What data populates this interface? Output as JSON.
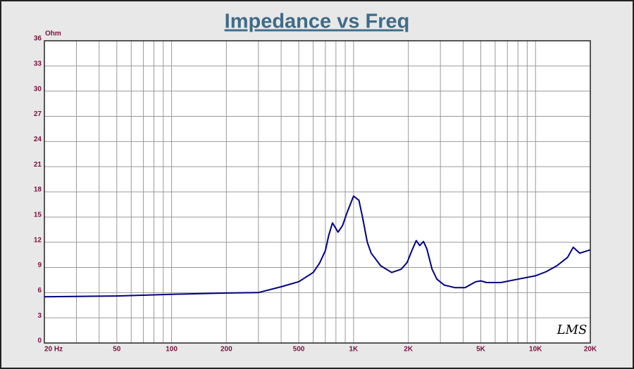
{
  "chart_data": {
    "type": "line",
    "title": "Impedance vs Freq",
    "y_label": "Ohm",
    "annotation": "LMS",
    "log_x": true,
    "grid": true,
    "x": [
      20,
      50,
      100,
      200,
      300,
      400,
      500,
      600,
      650,
      700,
      730,
      766,
      822,
      870,
      920,
      1000,
      1070,
      1120,
      1190,
      1250,
      1410,
      1620,
      1830,
      1970,
      2090,
      2210,
      2310,
      2420,
      2530,
      2700,
      2870,
      3150,
      3600,
      4100,
      4700,
      5000,
      5380,
      6450,
      8000,
      10000,
      11450,
      13100,
      15000,
      16100,
      17500,
      20000
    ],
    "series": [
      {
        "name": "Impedance",
        "color": "#000080",
        "values": [
          5.5,
          5.6,
          5.8,
          5.95,
          6.0,
          6.7,
          7.3,
          8.4,
          9.5,
          11.0,
          12.8,
          14.3,
          13.2,
          14.0,
          15.5,
          17.5,
          17.0,
          15.0,
          12.0,
          10.7,
          9.2,
          8.4,
          8.8,
          9.6,
          11.0,
          12.2,
          11.6,
          12.1,
          11.2,
          8.8,
          7.6,
          6.9,
          6.6,
          6.6,
          7.3,
          7.4,
          7.2,
          7.2,
          7.6,
          8.0,
          8.5,
          9.2,
          10.2,
          11.4,
          10.7,
          11.1
        ]
      }
    ],
    "xlim": [
      20,
      20000
    ],
    "xticks": [
      {
        "value": 20,
        "label": "20 Hz"
      },
      50,
      100,
      200,
      500,
      {
        "value": 1000,
        "label": "1K"
      },
      {
        "value": 2000,
        "label": "2K"
      },
      {
        "value": 5000,
        "label": "5K"
      },
      {
        "value": 10000,
        "label": "10K"
      },
      {
        "value": 20000,
        "label": "20K"
      }
    ],
    "x_minor_grid": [
      30,
      40,
      60,
      70,
      80,
      90,
      300,
      400,
      600,
      700,
      800,
      900,
      3000,
      4000,
      6000,
      7000,
      8000,
      9000
    ],
    "ylim": [
      0,
      36
    ],
    "yticks": [
      0,
      3,
      6,
      9,
      12,
      15,
      18,
      21,
      24,
      27,
      30,
      33,
      36
    ]
  }
}
